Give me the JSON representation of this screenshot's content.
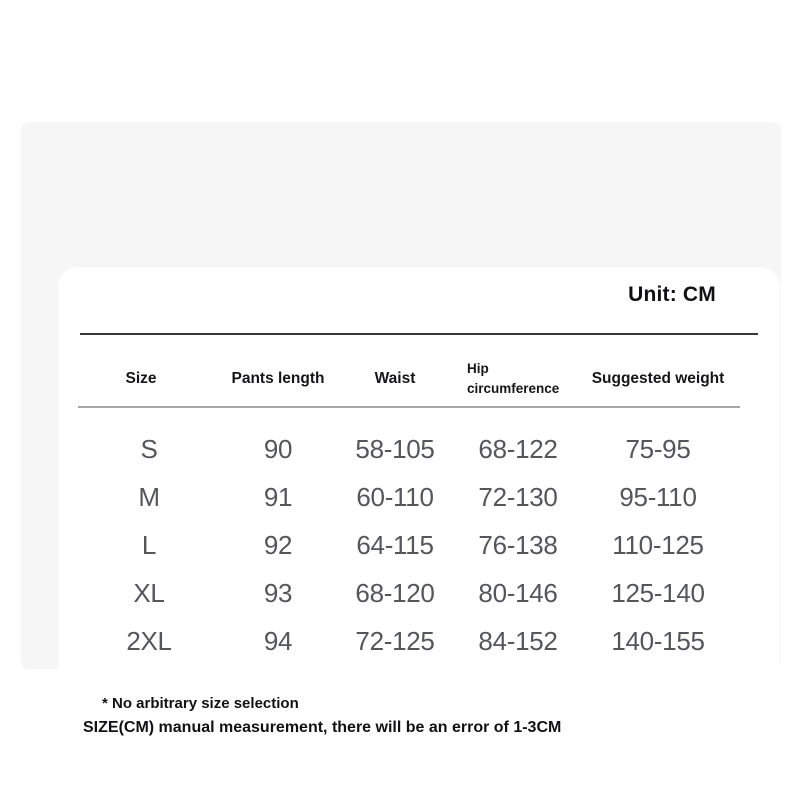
{
  "unit_label": "Unit: CM",
  "table": {
    "columns": [
      "Size",
      "Pants length",
      "Waist",
      "Hip circumference",
      "Suggested weight"
    ],
    "rows": [
      {
        "size": "S",
        "pants_length": "90",
        "waist": "58-105",
        "hip_circumference": "68-122",
        "suggested_weight": "75-95"
      },
      {
        "size": "M",
        "pants_length": "91",
        "waist": "60-110",
        "hip_circumference": "72-130",
        "suggested_weight": "95-110"
      },
      {
        "size": "L",
        "pants_length": "92",
        "waist": "64-115",
        "hip_circumference": "76-138",
        "suggested_weight": "110-125"
      },
      {
        "size": "XL",
        "pants_length": "93",
        "waist": "68-120",
        "hip_circumference": "80-146",
        "suggested_weight": "125-140"
      },
      {
        "size": "2XL",
        "pants_length": "94",
        "waist": "72-125",
        "hip_circumference": "84-152",
        "suggested_weight": "140-155"
      }
    ]
  },
  "notes": [
    "* No arbitrary size selection",
    "SIZE(CM) manual measurement, there will be an error of 1-3CM"
  ],
  "colors": {
    "panel_background": "#f6f6f7",
    "card_background": "#ffffff",
    "header_text": "#161618",
    "data_text": "#55565a",
    "divider_dark": "#38383c",
    "divider_light": "#a6a6a6"
  }
}
